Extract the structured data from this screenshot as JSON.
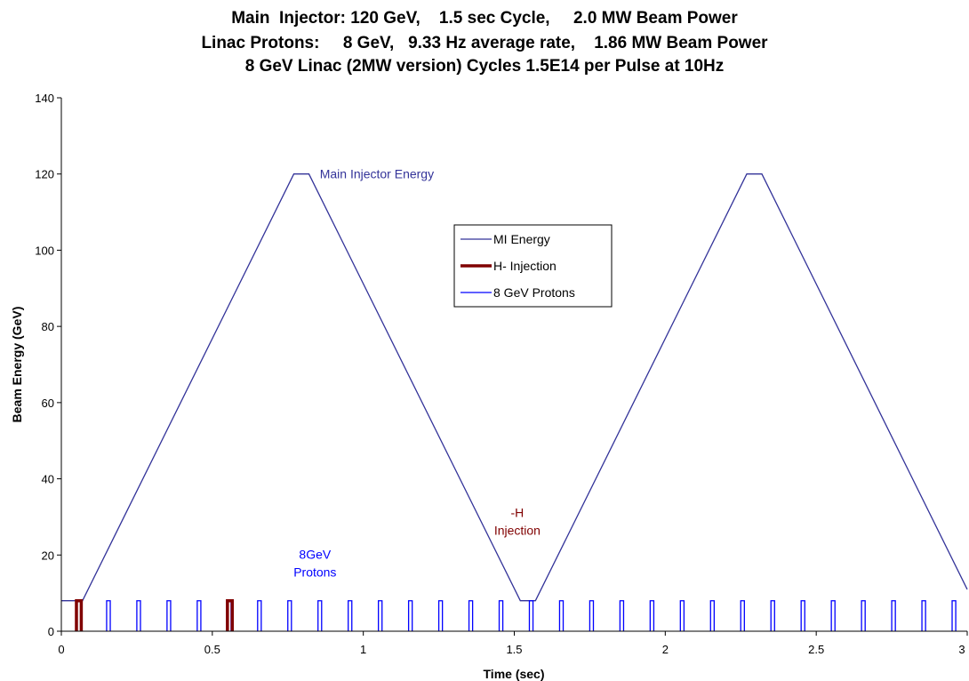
{
  "title_lines": [
    "Main  Injector: 120 GeV,    1.5 sec Cycle,     2.0 MW Beam Power",
    "Linac Protons:     8 GeV,   9.33 Hz average rate,    1.86 MW Beam Power",
    "8 GeV Linac (2MW version) Cycles 1.5E14 per Pulse at 10Hz"
  ],
  "colors": {
    "mi_energy": "#333399",
    "h_injection": "#800000",
    "protons": "#0000ff",
    "axis": "#000000"
  },
  "chart_data": {
    "type": "line",
    "xlabel": "Time (sec)",
    "ylabel": "Beam Energy (GeV)",
    "xlim": [
      0,
      3
    ],
    "ylim": [
      0,
      140
    ],
    "x_ticks": [
      0,
      0.5,
      1,
      1.5,
      2,
      2.5,
      3
    ],
    "x_tick_labels": [
      "0",
      "0.5",
      "1",
      "1.5",
      "2",
      "2.5",
      "3"
    ],
    "y_ticks": [
      0,
      20,
      40,
      60,
      80,
      100,
      120,
      140
    ],
    "y_tick_labels": [
      "0",
      "20",
      "40",
      "60",
      "80",
      "100",
      "120",
      "140"
    ],
    "legend": {
      "placement": "center-right",
      "entries": [
        "MI Energy",
        "H- Injection",
        "8 GeV Protons"
      ]
    },
    "series": [
      {
        "name": "MI Energy",
        "x": [
          0,
          0.07,
          0.77,
          0.82,
          1.52,
          1.57,
          2.27,
          2.32,
          3.0
        ],
        "y": [
          8,
          8,
          120,
          120,
          8,
          8,
          120,
          120,
          11
        ]
      },
      {
        "name": "H- Injection",
        "pulses": [
          0.05,
          0.55
        ],
        "pulse_width": 0.016,
        "pulse_height": 8
      },
      {
        "name": "8 GeV Protons",
        "pulses": [
          0.15,
          0.25,
          0.35,
          0.45,
          0.55,
          0.65,
          0.75,
          0.85,
          0.95,
          1.05,
          1.15,
          1.25,
          1.35,
          1.45,
          1.55,
          1.65,
          1.75,
          1.85,
          1.95,
          2.05,
          2.15,
          2.25,
          2.35,
          2.45,
          2.55,
          2.65,
          2.75,
          2.85,
          2.95
        ],
        "pulse_width": 0.012,
        "pulse_height": 8
      }
    ],
    "annotations": [
      {
        "text": "Main Injector Energy",
        "series": "MI Energy",
        "x": 0.85,
        "y": 120
      },
      {
        "lines": [
          "8GeV",
          "Protons"
        ],
        "series": "8 GeV Protons",
        "x": 0.84,
        "y": 19
      },
      {
        "lines": [
          "-H",
          "Injection"
        ],
        "series": "H- Injection",
        "x": 1.51,
        "y": 30
      }
    ]
  }
}
